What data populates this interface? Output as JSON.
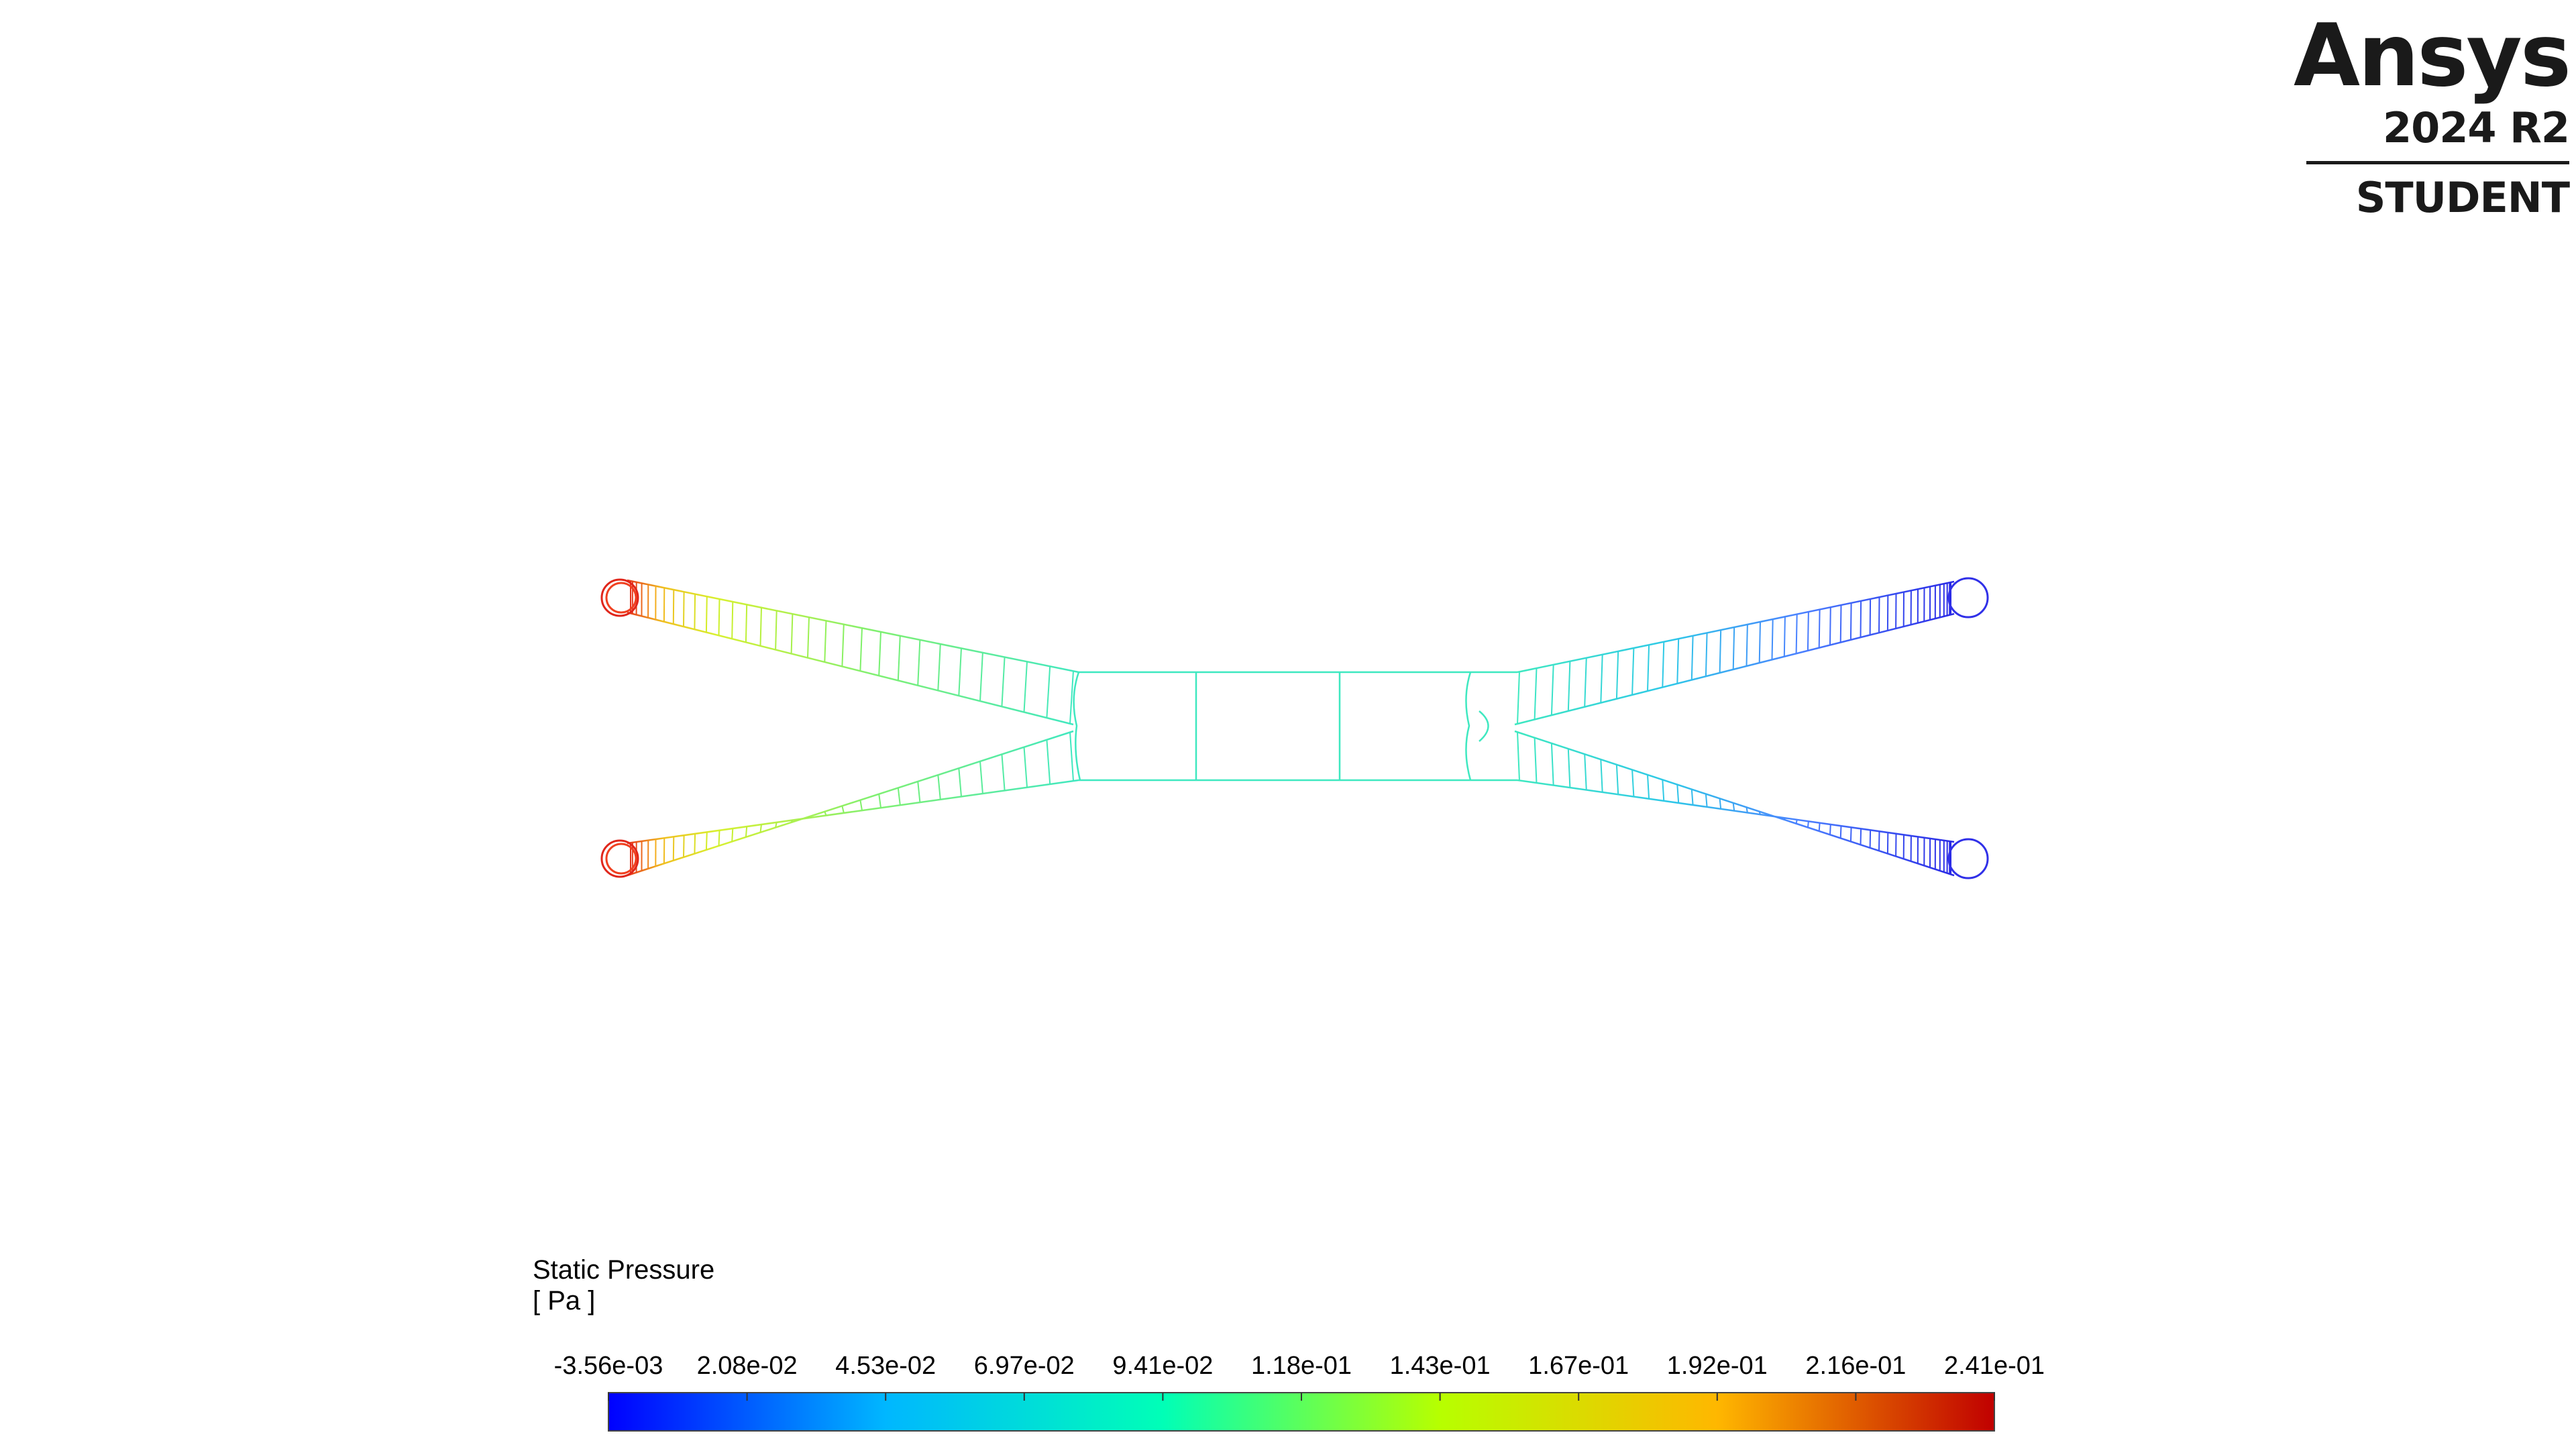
{
  "brand": {
    "name": "Ansys",
    "version": "2024 R2",
    "edition": "STUDENT"
  },
  "legend": {
    "title": "Static Pressure",
    "unit": "[ Pa ]",
    "tick_labels": [
      "-3.56e-03",
      "2.08e-02",
      "4.53e-02",
      "6.97e-02",
      "9.41e-02",
      "1.18e-01",
      "1.43e-01",
      "1.67e-01",
      "1.92e-01",
      "2.16e-01",
      "2.41e-01"
    ],
    "range": [
      -0.00356,
      0.241
    ],
    "colormap": [
      "#0000ff",
      "#00b7ff",
      "#00ffb7",
      "#b7ff00",
      "#ffb700",
      "#c00000"
    ]
  },
  "colors": {
    "high": "#e0261b",
    "mid_high": "#c8f03c",
    "mid": "#3ee8c0",
    "low_mid": "#4aa0ff",
    "low": "#2a2ae6"
  }
}
